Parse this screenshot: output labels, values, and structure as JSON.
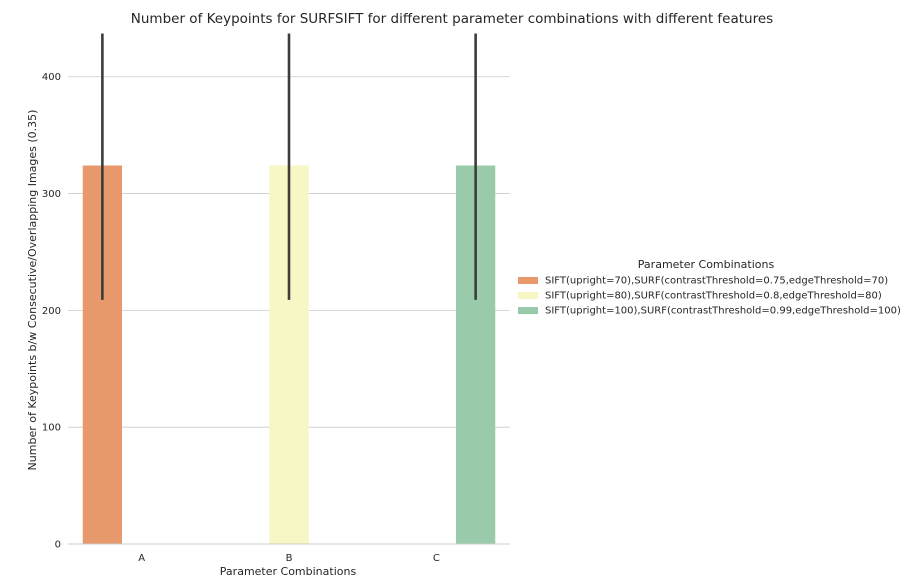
{
  "chart_data": {
    "type": "bar",
    "title": "Number of Keypoints for SURFSIFT for different parameter combinations with different features",
    "xlabel": "Parameter Combinations",
    "ylabel": "Number of Keypoints b/w Consecutive/Overlapping Images (0.35)",
    "categories": [
      "A",
      "B",
      "C"
    ],
    "ylim": [
      0,
      440
    ],
    "yticks": [
      0,
      100,
      200,
      300,
      400
    ],
    "ytick_labels": [
      "0",
      "100",
      "200",
      "300",
      "400"
    ],
    "grid": true,
    "legend": {
      "title": "Parameter Combinations",
      "placement": "right"
    },
    "series": [
      {
        "name": "SIFT(upright=70),SURF(contrastThreshold=0.75,edgeThreshold=70)",
        "color": "#e8996b",
        "values": [
          324,
          null,
          null
        ],
        "ci": [
          [
            209,
            437
          ],
          null,
          null
        ]
      },
      {
        "name": "SIFT(upright=80),SURF(contrastThreshold=0.8,edgeThreshold=80)",
        "color": "#f7f7c6",
        "values": [
          null,
          324,
          null
        ],
        "ci": [
          null,
          [
            209,
            437
          ],
          null
        ]
      },
      {
        "name": "SIFT(upright=100),SURF(contrastThreshold=0.99,edgeThreshold=100)",
        "color": "#99cbaa",
        "values": [
          null,
          null,
          324
        ],
        "ci": [
          null,
          null,
          [
            209,
            437
          ]
        ]
      }
    ]
  }
}
